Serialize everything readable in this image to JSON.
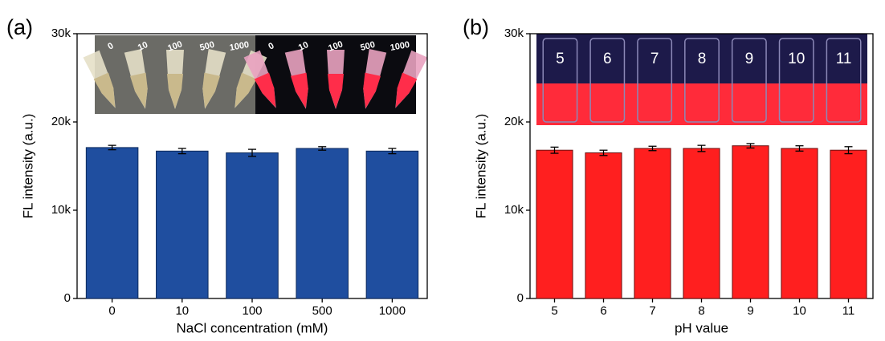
{
  "chart_data": [
    {
      "type": "bar",
      "panel_label": "(a)",
      "x_label": "NaCl concentration (mM)",
      "y_label": "FL intensity (a.u.)",
      "categories": [
        "0",
        "10",
        "100",
        "500",
        "1000"
      ],
      "values": [
        17100,
        16700,
        16500,
        17000,
        16700
      ],
      "errors": [
        250,
        300,
        400,
        200,
        300
      ],
      "color": "#1f4e9f",
      "ylim": [
        0,
        30000
      ],
      "yticks": [
        0,
        {
          "value": 10000,
          "label": "10k"
        },
        {
          "value": 20000,
          "label": "20k"
        },
        {
          "value": 30000,
          "label": "30k"
        }
      ],
      "inset_labels": [
        "0",
        "10",
        "100",
        "500",
        "1000"
      ]
    },
    {
      "type": "bar",
      "panel_label": "(b)",
      "x_label": "pH value",
      "y_label": "FL intensity (a.u.)",
      "categories": [
        "5",
        "6",
        "7",
        "8",
        "9",
        "10",
        "11"
      ],
      "values": [
        16800,
        16500,
        17000,
        17000,
        17300,
        17000,
        16800
      ],
      "errors": [
        350,
        300,
        250,
        350,
        250,
        300,
        400
      ],
      "color": "#ff1f1f",
      "ylim": [
        0,
        30000
      ],
      "yticks": [
        0,
        {
          "value": 10000,
          "label": "10k"
        },
        {
          "value": 20000,
          "label": "20k"
        },
        {
          "value": 30000,
          "label": "30k"
        }
      ],
      "inset_labels": [
        "5",
        "6",
        "7",
        "8",
        "9",
        "10",
        "11"
      ]
    }
  ]
}
